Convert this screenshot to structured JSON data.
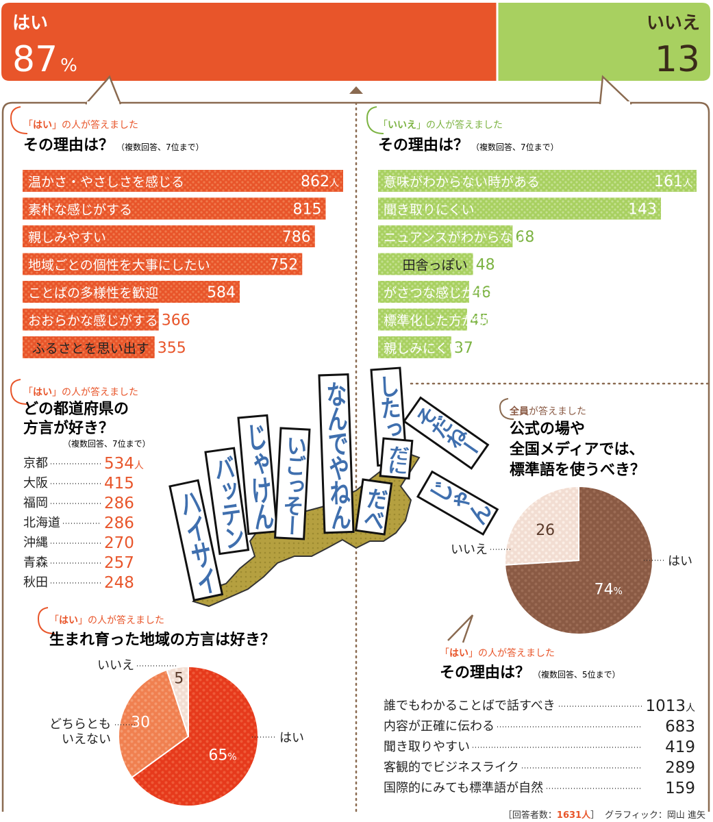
{
  "header": {
    "yes": {
      "label": "はい",
      "value": "87",
      "unit": "%"
    },
    "no": {
      "label": "いいえ",
      "value": "13"
    }
  },
  "sections": {
    "yes_reasons": {
      "lead_q": "はい",
      "lead_rest": "の人が答えました",
      "title": "その理由は？",
      "note": "（複数回答、7位まで）"
    },
    "no_reasons": {
      "lead_q": "いいえ",
      "lead_rest": "の人が答えました",
      "title": "その理由は？",
      "note": "（複数回答、7位まで）"
    },
    "pref": {
      "lead_q": "はい",
      "lead_rest": "の人が答えました",
      "title1": "どの都道府県の",
      "title2": "方言が好き？",
      "note": "（複数回答、7位まで）"
    },
    "hometown": {
      "lead_q": "はい",
      "lead_rest": "の人が答えました",
      "title": "生まれ育った地域の方言は好き？"
    },
    "standard": {
      "lead_q": "全員",
      "lead_rest": "が答えました",
      "title1": "公式の場や",
      "title2": "全国メディアでは、",
      "title3": "標準語を使うべき？"
    },
    "standard_reasons": {
      "lead_q": "はい",
      "lead_rest": "の人が答えました",
      "title": "その理由は？",
      "note": "（複数回答、5位まで）"
    }
  },
  "dialect_words": [
    "ハイサイ",
    "バッテン",
    "じゃけん",
    "いごっそー",
    "なんでやねん",
    "したっけ",
    "だに",
    "だべ",
    "そだねー",
    "じゃん"
  ],
  "footer": {
    "prefix": "［回答者数：",
    "count": "1631",
    "unit": "人",
    "suffix": "］",
    "credit": "グラフィック：岡山 進矢"
  },
  "colors": {
    "orange": "#e8552a",
    "orange_light": "#f08050",
    "green": "#a8d060",
    "green_dark": "#7cb342",
    "brown": "#8a5a44",
    "pink": "#f2ddd2",
    "gray_dot": "#8a6a50"
  },
  "chart_data": [
    {
      "type": "bar",
      "title": "その理由は？",
      "categories": [
        "温かさ・やさしさを感じる",
        "素朴な感じがする",
        "親しみやすい",
        "地域ごとの個性を大事にしたい",
        "ことばの多様性を歓迎",
        "おおらかな感じがする",
        "ふるさとを思い出す"
      ],
      "values": [
        862,
        815,
        786,
        752,
        584,
        366,
        355
      ],
      "unit": "人"
    },
    {
      "type": "bar",
      "title": "その理由は？",
      "categories": [
        "意味がわからない時がある",
        "聞き取りにくい",
        "ニュアンスがわからない",
        "田舎っぽい",
        "がさつな感じがする",
        "標準化した方が効率的",
        "親しみにくい"
      ],
      "values": [
        161,
        143,
        68,
        48,
        46,
        45,
        37
      ],
      "unit": "人"
    },
    {
      "type": "table",
      "title": "どの都道府県の方言が好き？",
      "categories": [
        "京都",
        "大阪",
        "福岡",
        "北海道",
        "沖縄",
        "青森",
        "秋田"
      ],
      "values": [
        534,
        415,
        286,
        286,
        270,
        257,
        248
      ],
      "unit": "人"
    },
    {
      "type": "pie",
      "title": "生まれ育った地域の方言は好き？",
      "categories": [
        "はい",
        "どちらとも\nいえない",
        "いいえ"
      ],
      "values": [
        65,
        30,
        5
      ],
      "unit": "%"
    },
    {
      "type": "pie",
      "title": "標準語を使うべき？",
      "categories": [
        "はい",
        "いいえ"
      ],
      "values": [
        74,
        26
      ],
      "unit": "%"
    },
    {
      "type": "table",
      "title": "その理由は？",
      "categories": [
        "誰でもわかることばで話すべき",
        "内容が正確に伝わる",
        "聞き取りやすい",
        "客観的でビジネスライク",
        "国際的にみても標準語が自然"
      ],
      "values": [
        1013,
        683,
        419,
        289,
        159
      ],
      "unit": "人"
    }
  ]
}
